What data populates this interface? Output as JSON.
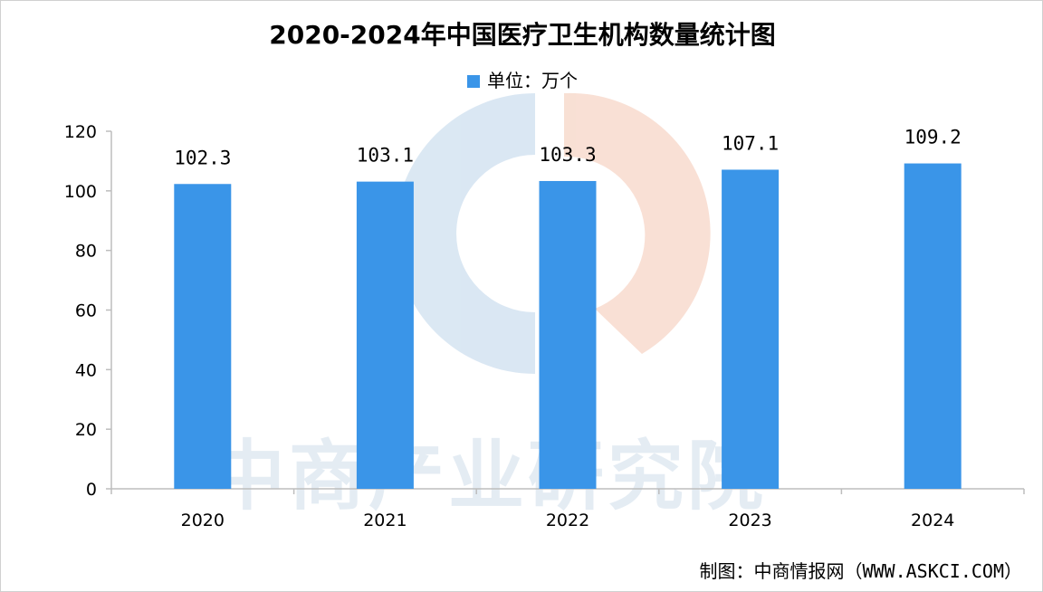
{
  "title": "2020-2024年中国医疗卫生机构数量统计图",
  "legend": {
    "label": "单位：万个"
  },
  "source": "制图：中商情报网（WWW.ASKCI.COM）",
  "watermark": {
    "text": "中商产业研究院"
  },
  "colors": {
    "bar": "#3a95e8",
    "axis": "#bdbdbd",
    "watermark_blue": "#d7e5f2",
    "watermark_orange": "#f8ddd0"
  },
  "chart_data": {
    "type": "bar",
    "title": "2020-2024年中国医疗卫生机构数量统计图",
    "categories": [
      "2020",
      "2021",
      "2022",
      "2023",
      "2024"
    ],
    "series": [
      {
        "name": "单位：万个",
        "values": [
          102.3,
          103.1,
          103.3,
          107.1,
          109.2
        ]
      }
    ],
    "data_labels": [
      "102.3",
      "103.1",
      "103.3",
      "107.1",
      "109.2"
    ],
    "ylim": [
      0,
      120
    ],
    "yticks": [
      0,
      20,
      40,
      60,
      80,
      100,
      120
    ],
    "xlabel": "",
    "ylabel": "",
    "grid": false,
    "legend_position": "top"
  }
}
